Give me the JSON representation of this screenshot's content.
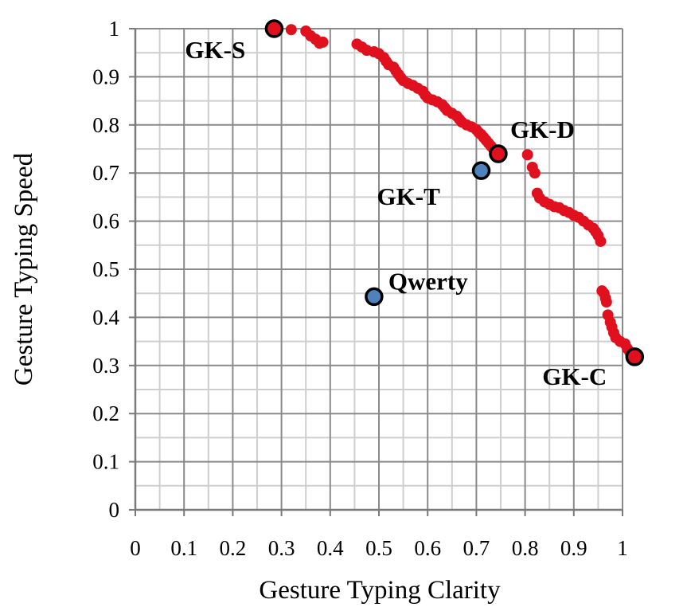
{
  "chart_data": {
    "type": "scatter",
    "xlabel": "Gesture Typing Clarity",
    "ylabel": "Gesture Typing Speed",
    "xlim": [
      0,
      1
    ],
    "ylim": [
      0,
      1
    ],
    "x_ticks": [
      "0",
      "0.1",
      "0.2",
      "0.3",
      "0.4",
      "0.5",
      "0.6",
      "0.7",
      "0.8",
      "0.9",
      "1"
    ],
    "y_ticks": [
      "0",
      "0.1",
      "0.2",
      "0.3",
      "0.4",
      "0.5",
      "0.6",
      "0.7",
      "0.8",
      "0.9",
      "1"
    ],
    "grid": true,
    "colors": {
      "pareto": "#e0101e",
      "keyboard": "#4f81bd",
      "outline": "#000000"
    },
    "series": [
      {
        "points": [
          [
            0.285,
            1.0
          ],
          [
            0.32,
            0.998
          ],
          [
            0.35,
            0.995
          ],
          [
            0.36,
            0.985
          ],
          [
            0.37,
            0.978
          ],
          [
            0.378,
            0.97
          ],
          [
            0.385,
            0.972
          ],
          [
            0.455,
            0.968
          ],
          [
            0.465,
            0.962
          ],
          [
            0.475,
            0.955
          ],
          [
            0.49,
            0.952
          ],
          [
            0.5,
            0.948
          ],
          [
            0.51,
            0.94
          ],
          [
            0.515,
            0.932
          ],
          [
            0.52,
            0.925
          ],
          [
            0.53,
            0.92
          ],
          [
            0.535,
            0.912
          ],
          [
            0.54,
            0.905
          ],
          [
            0.545,
            0.898
          ],
          [
            0.55,
            0.892
          ],
          [
            0.56,
            0.886
          ],
          [
            0.57,
            0.882
          ],
          [
            0.58,
            0.876
          ],
          [
            0.59,
            0.87
          ],
          [
            0.595,
            0.862
          ],
          [
            0.6,
            0.856
          ],
          [
            0.61,
            0.852
          ],
          [
            0.62,
            0.848
          ],
          [
            0.63,
            0.842
          ],
          [
            0.635,
            0.836
          ],
          [
            0.64,
            0.83
          ],
          [
            0.65,
            0.824
          ],
          [
            0.66,
            0.818
          ],
          [
            0.665,
            0.812
          ],
          [
            0.67,
            0.806
          ],
          [
            0.68,
            0.8
          ],
          [
            0.69,
            0.796
          ],
          [
            0.7,
            0.79
          ],
          [
            0.705,
            0.784
          ],
          [
            0.71,
            0.78
          ],
          [
            0.715,
            0.774
          ],
          [
            0.72,
            0.768
          ],
          [
            0.725,
            0.762
          ],
          [
            0.73,
            0.756
          ],
          [
            0.735,
            0.75
          ],
          [
            0.745,
            0.74
          ],
          [
            0.805,
            0.738
          ],
          [
            0.815,
            0.712
          ],
          [
            0.82,
            0.7
          ],
          [
            0.825,
            0.658
          ],
          [
            0.83,
            0.648
          ],
          [
            0.84,
            0.64
          ],
          [
            0.85,
            0.635
          ],
          [
            0.86,
            0.63
          ],
          [
            0.87,
            0.628
          ],
          [
            0.88,
            0.622
          ],
          [
            0.89,
            0.618
          ],
          [
            0.9,
            0.612
          ],
          [
            0.91,
            0.608
          ],
          [
            0.92,
            0.6
          ],
          [
            0.93,
            0.592
          ],
          [
            0.94,
            0.585
          ],
          [
            0.945,
            0.578
          ],
          [
            0.95,
            0.57
          ],
          [
            0.955,
            0.558
          ],
          [
            0.958,
            0.455
          ],
          [
            0.962,
            0.45
          ],
          [
            0.965,
            0.44
          ],
          [
            0.967,
            0.432
          ],
          [
            0.97,
            0.405
          ],
          [
            0.975,
            0.39
          ],
          [
            0.978,
            0.38
          ],
          [
            0.982,
            0.368
          ],
          [
            0.986,
            0.358
          ],
          [
            0.995,
            0.35
          ],
          [
            1.005,
            0.345
          ],
          [
            1.01,
            0.335
          ],
          [
            1.015,
            0.328
          ],
          [
            1.025,
            0.318
          ]
        ]
      },
      {
        "points": [
          [
            0.285,
            1.0
          ],
          [
            0.745,
            0.74
          ],
          [
            1.025,
            0.318
          ]
        ],
        "labels": [
          "GK-S",
          "GK-D",
          "GK-C"
        ]
      },
      {
        "points": [
          [
            0.71,
            0.705
          ],
          [
            0.49,
            0.443
          ]
        ],
        "labels": [
          "GK-T",
          "Qwerty"
        ]
      }
    ]
  }
}
